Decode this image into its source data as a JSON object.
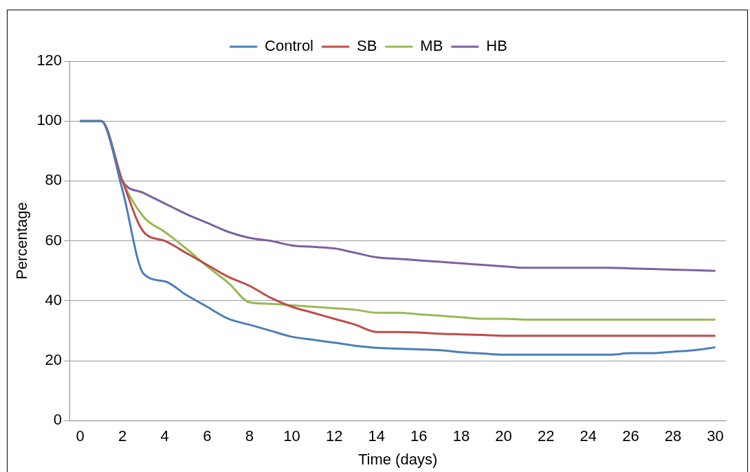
{
  "chart_data": {
    "type": "line",
    "xlabel": "Time (days)",
    "ylabel": "Percentage",
    "x": [
      0,
      1,
      2,
      3,
      4,
      5,
      6,
      7,
      8,
      9,
      10,
      11,
      12,
      13,
      14,
      15,
      16,
      17,
      18,
      19,
      20,
      21,
      22,
      23,
      24,
      25,
      26,
      27,
      28,
      29,
      30
    ],
    "xlim": [
      -0.5,
      30.5
    ],
    "xticks": [
      0,
      2,
      4,
      6,
      8,
      10,
      12,
      14,
      16,
      18,
      20,
      22,
      24,
      26,
      28,
      30
    ],
    "ylim": [
      0,
      120
    ],
    "yticks": [
      0,
      20,
      40,
      60,
      80,
      100,
      120
    ],
    "grid": "y",
    "legend": "top",
    "marker": "none",
    "line_style": "solid",
    "series": [
      {
        "name": "Control",
        "color": "#4a7ebb",
        "values": [
          100,
          100,
          77,
          49,
          46.5,
          42,
          38,
          34,
          32,
          30,
          28,
          27,
          26,
          25,
          24.3,
          24,
          23.8,
          23.5,
          22.8,
          22.4,
          22,
          22,
          22,
          22,
          22,
          22,
          22.5,
          22.5,
          23,
          23.5,
          24.5
        ]
      },
      {
        "name": "SB",
        "color": "#be4b48",
        "values": [
          100,
          100,
          80,
          63,
          60,
          56,
          52,
          48,
          45,
          41,
          38,
          36,
          34,
          32,
          29.6,
          29.6,
          29.4,
          29,
          28.8,
          28.6,
          28.3,
          28.3,
          28.3,
          28.3,
          28.3,
          28.3,
          28.3,
          28.3,
          28.3,
          28.3,
          28.3
        ]
      },
      {
        "name": "MB",
        "color": "#98b954",
        "values": [
          100,
          100,
          80,
          68,
          63,
          57.5,
          51.5,
          46,
          39.5,
          39,
          38.5,
          38,
          37.5,
          37,
          36,
          36,
          35.5,
          35,
          34.5,
          34,
          34,
          33.7,
          33.7,
          33.7,
          33.7,
          33.7,
          33.7,
          33.7,
          33.7,
          33.7,
          33.7
        ]
      },
      {
        "name": "HB",
        "color": "#7d60a0",
        "values": [
          100,
          100,
          80,
          76,
          72.5,
          69,
          66,
          63,
          61,
          60,
          58.5,
          58,
          57.5,
          56,
          54.5,
          54,
          53.5,
          53,
          52.5,
          52,
          51.5,
          51,
          51,
          51,
          51,
          51,
          50.8,
          50.6,
          50.4,
          50.2,
          50
        ]
      }
    ]
  }
}
